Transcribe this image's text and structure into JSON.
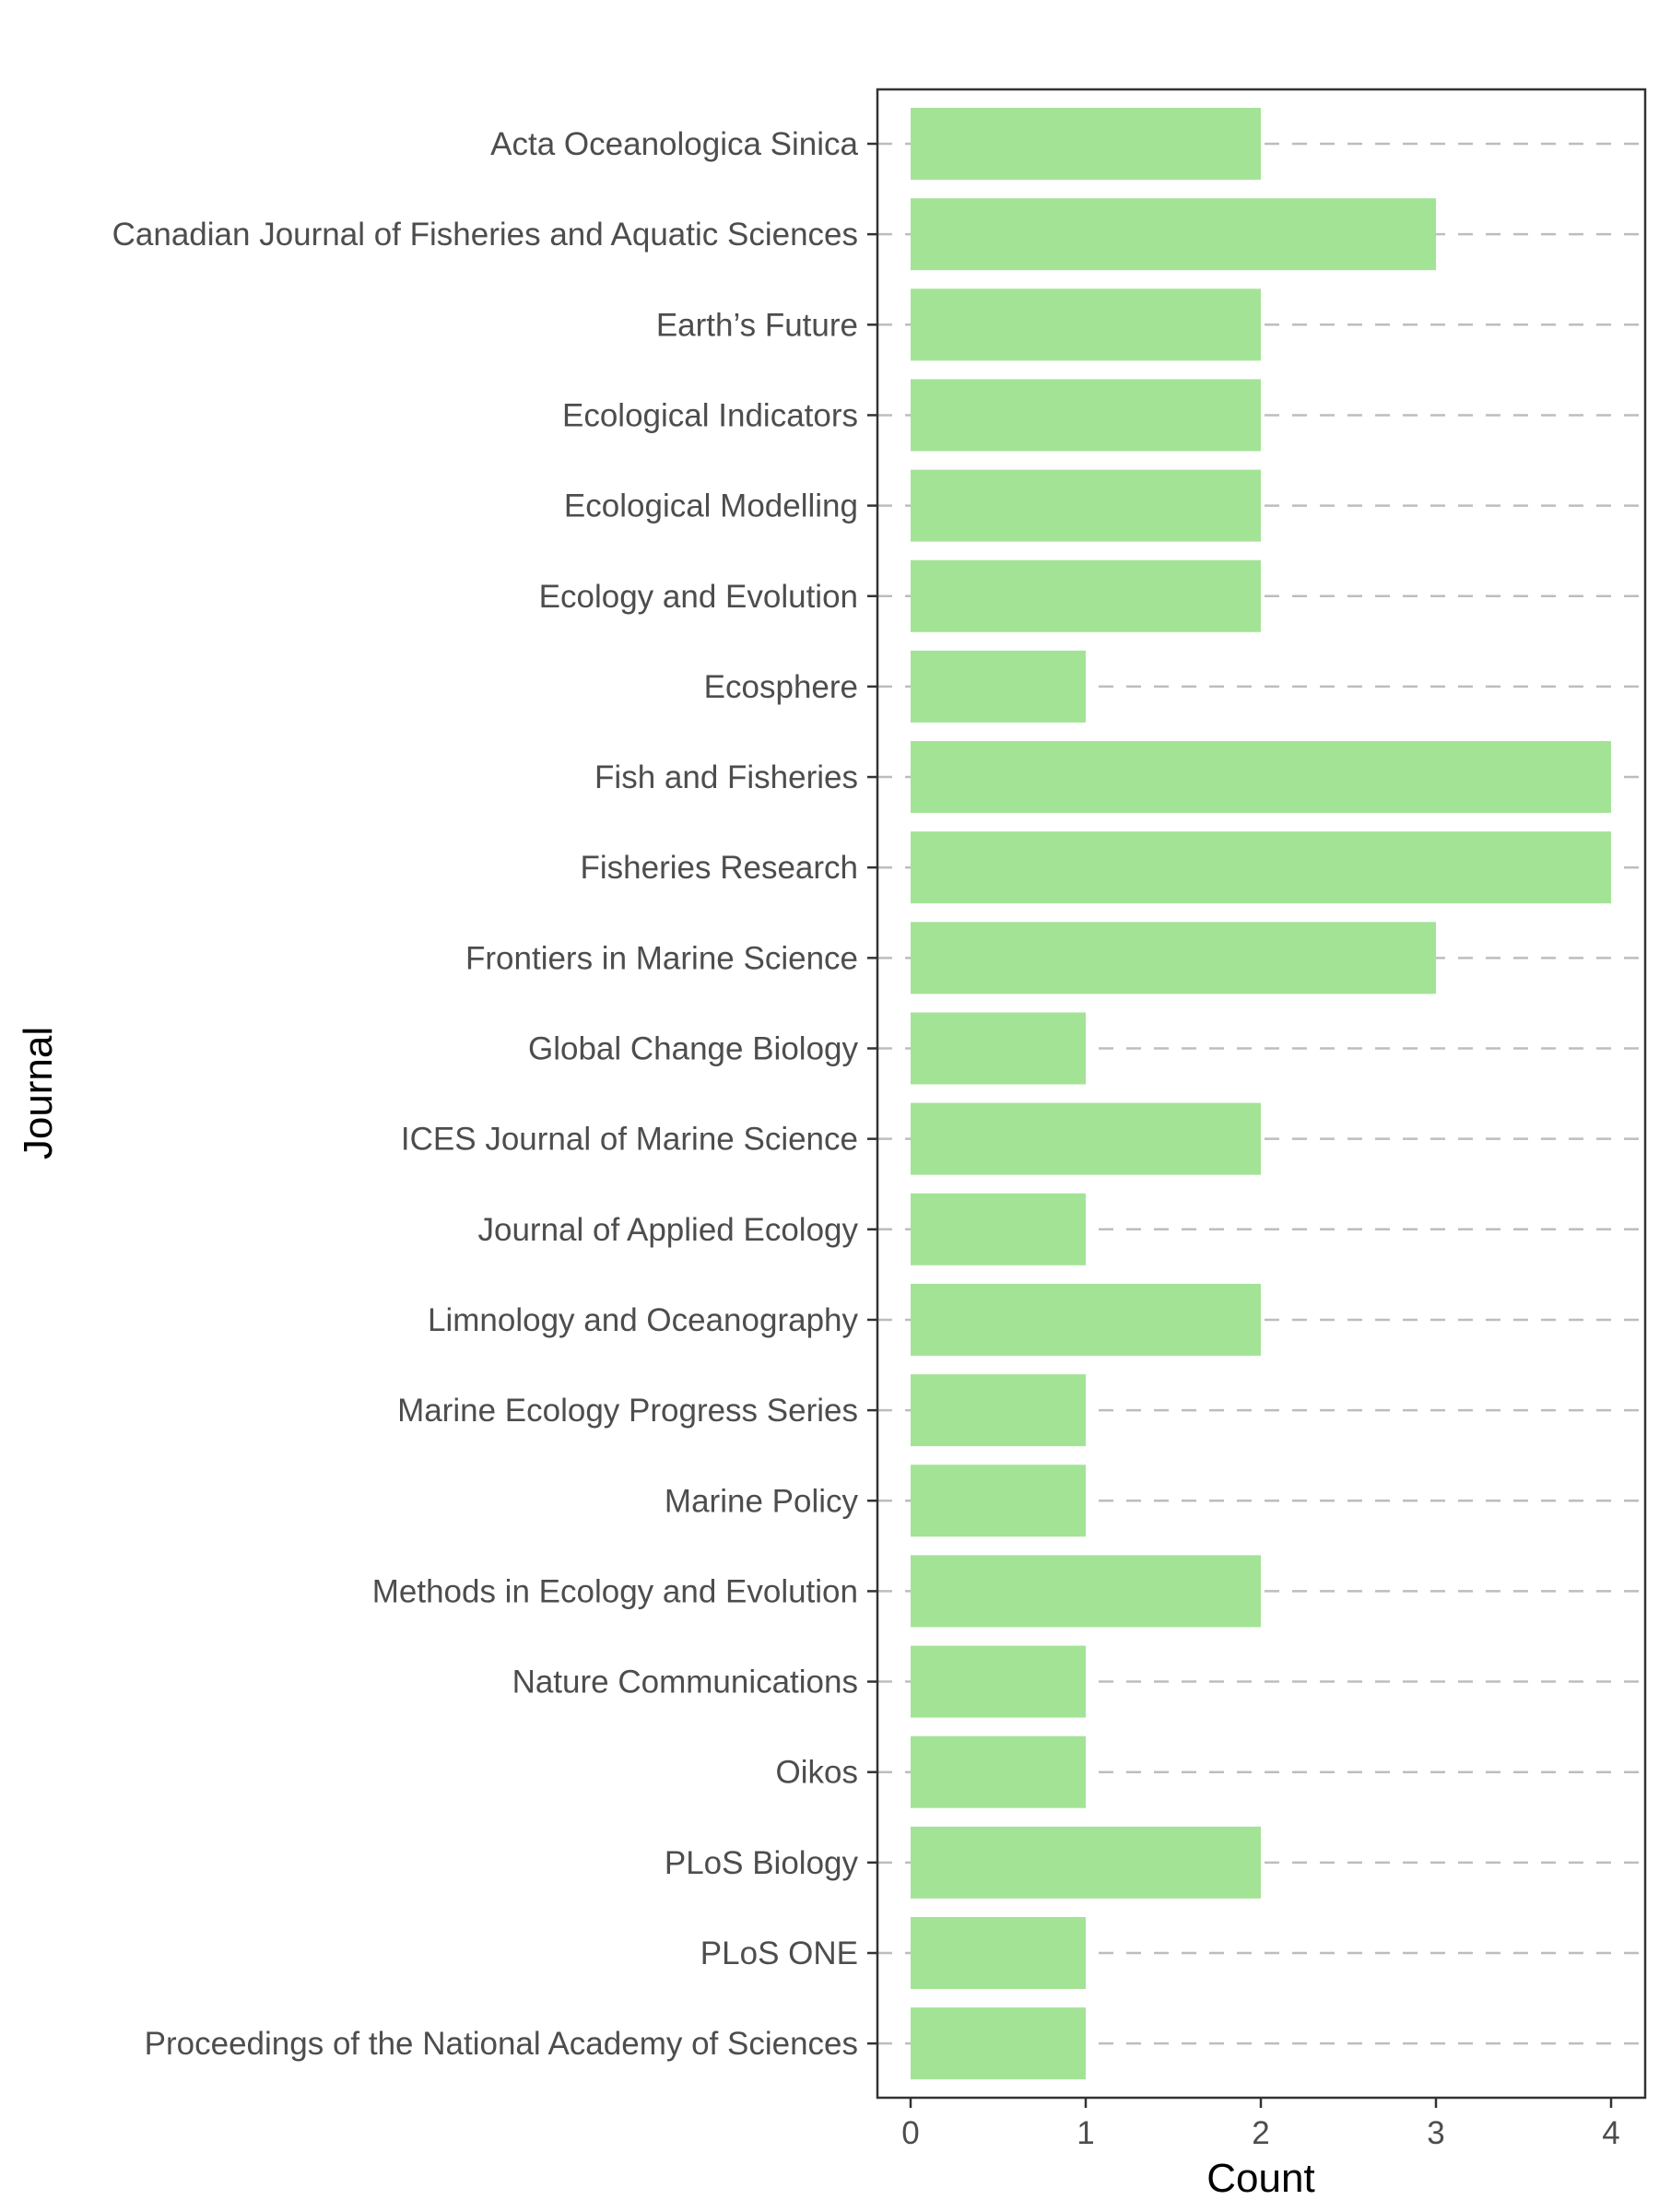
{
  "chart_data": {
    "type": "bar",
    "orientation": "horizontal",
    "xlabel": "Count",
    "ylabel": "Journal",
    "xlim": [
      0,
      4.1
    ],
    "xticks": [
      0,
      1,
      2,
      3,
      4
    ],
    "grid": "horizontal dashed lines at each category",
    "bar_color": "#a3e396",
    "categories": [
      "Acta Oceanologica Sinica",
      "Canadian Journal of Fisheries and Aquatic Sciences",
      "Earth’s Future",
      "Ecological Indicators",
      "Ecological Modelling",
      "Ecology and Evolution",
      "Ecosphere",
      "Fish and Fisheries",
      "Fisheries Research",
      "Frontiers in Marine Science",
      "Global Change Biology",
      "ICES Journal of Marine Science",
      "Journal of Applied Ecology",
      "Limnology and Oceanography",
      "Marine Ecology Progress Series",
      "Marine Policy",
      "Methods in Ecology and Evolution",
      "Nature Communications",
      "Oikos",
      "PLoS Biology",
      "PLoS ONE",
      "Proceedings of the National Academy of Sciences"
    ],
    "values": [
      2,
      3,
      2,
      2,
      2,
      2,
      1,
      4,
      4,
      3,
      1,
      2,
      1,
      2,
      1,
      1,
      2,
      1,
      1,
      2,
      1,
      1
    ]
  }
}
